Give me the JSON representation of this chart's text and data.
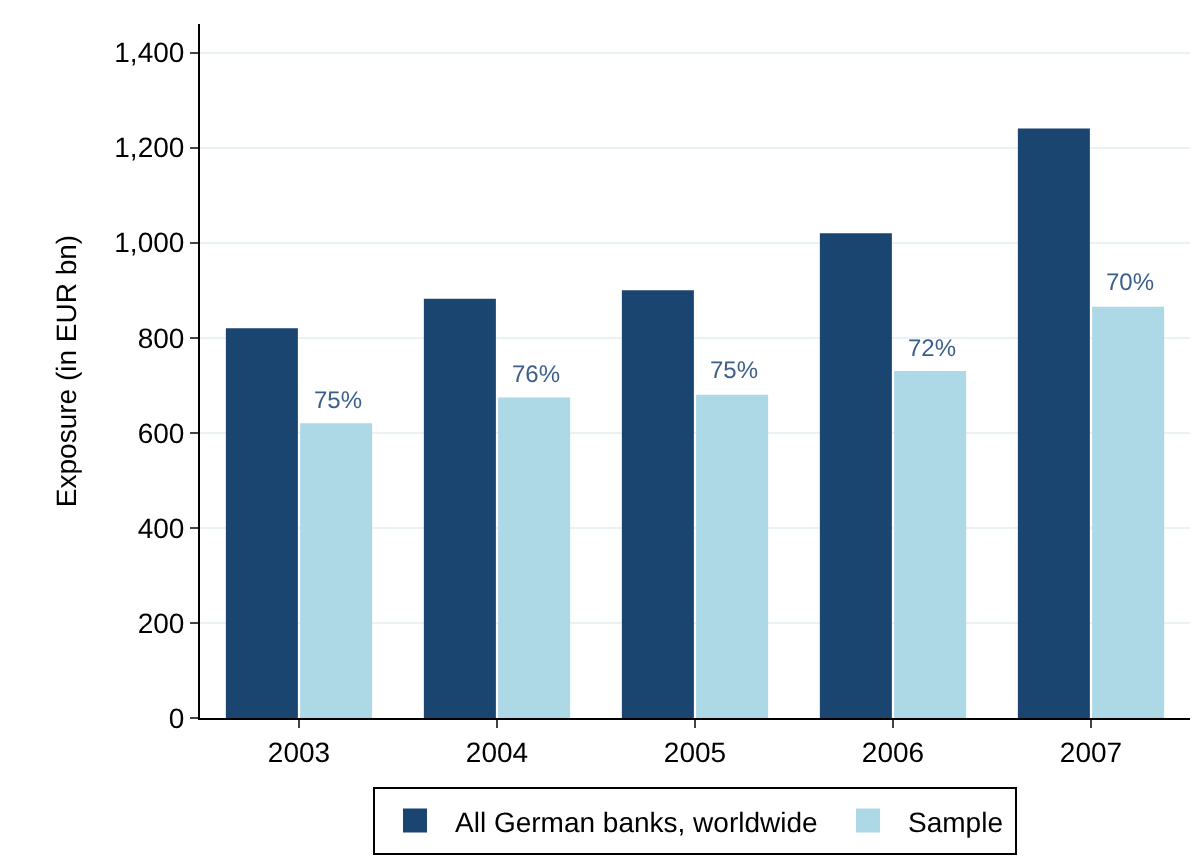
{
  "chart_data": {
    "type": "bar",
    "ylabel": "Exposure (in EUR bn)",
    "categories": [
      "2003",
      "2004",
      "2005",
      "2006",
      "2007"
    ],
    "series": [
      {
        "name": "All German banks, worldwide",
        "color": "#1a4570",
        "values": [
          820,
          882,
          900,
          1020,
          1240
        ]
      },
      {
        "name": "Sample",
        "color": "#add8e6",
        "values": [
          620,
          674,
          680,
          730,
          865
        ]
      }
    ],
    "annotations": [
      {
        "text": "75%",
        "x": "2003",
        "y": 620
      },
      {
        "text": "76%",
        "x": "2004",
        "y": 674
      },
      {
        "text": "75%",
        "x": "2005",
        "y": 680
      },
      {
        "text": "72%",
        "x": "2006",
        "y": 730
      },
      {
        "text": "70%",
        "x": "2007",
        "y": 865
      }
    ],
    "ylim": [
      0,
      1460
    ],
    "yticks": [
      0,
      {
        "value": 200,
        "label": "200"
      },
      {
        "value": 400,
        "label": "400"
      },
      {
        "value": 600,
        "label": "600"
      },
      {
        "value": 800,
        "label": "800"
      },
      {
        "value": 1000,
        "label": "1,000"
      },
      {
        "value": 1200,
        "label": "1,200"
      },
      {
        "value": 1400,
        "label": "1,400"
      }
    ],
    "grid": "y",
    "legend": "bottom"
  }
}
